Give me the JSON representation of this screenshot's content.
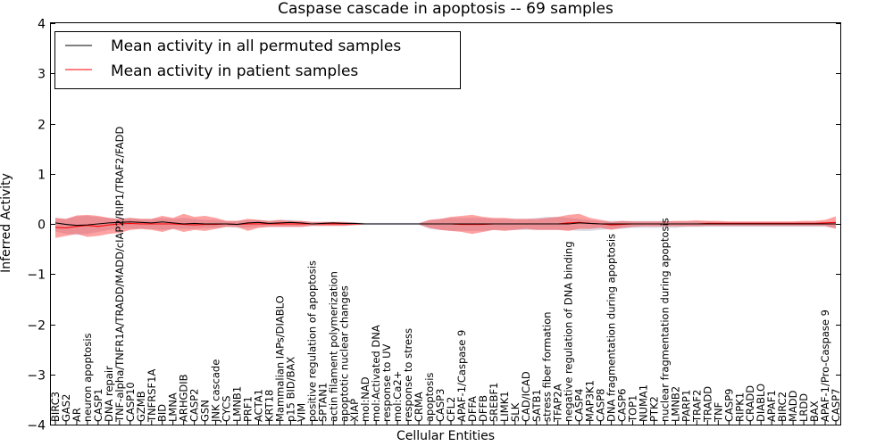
{
  "chart_data": {
    "type": "line",
    "title": "Caspase cascade in apoptosis -- 69 samples",
    "xlabel": "Cellular Entities",
    "ylabel": "Inferred Activity",
    "ylim": [
      -4,
      4
    ],
    "yticks": [
      -4,
      -3,
      -2,
      -1,
      0,
      1,
      2,
      3,
      4
    ],
    "ytick_labels": [
      "−4",
      "−3",
      "−2",
      "−1",
      "0",
      "1",
      "2",
      "3",
      "4"
    ],
    "legend_placement": "top-left",
    "categories": [
      "BIRC3",
      "GAS2",
      "AR",
      "neuron apoptosis",
      "CASP1",
      "DNA repair",
      "TNF-alpha/TNFR1A/TRADD/MADD/cIAP2/RIP1/TRAF2/FADD",
      "CASP10",
      "GZMB",
      "TNFRSF1A",
      "BID",
      "LMNA",
      "ARHGDIB",
      "CASP2",
      "GSN",
      "JNK cascade",
      "CYCS",
      "LMNB1",
      "PRF1",
      "ACTA1",
      "KRT18",
      "Mammalian IAPs/DIABLO",
      "p15 BID/BAX",
      "VIM",
      "positive regulation of apoptosis",
      "SPTAN1",
      "actin filament polymerization",
      "apoptotic nuclear changes",
      "XIAP",
      "mol:NAD",
      "mol:Activated DNA",
      "response to UV",
      "mol:Ca2+",
      "response to stress",
      "CRMA",
      "apoptosis",
      "CASP3",
      "CFL2",
      "APAF-1/Caspase 9",
      "DFFA",
      "DFFB",
      "SREBF1",
      "LIMK1",
      "SLK",
      "CAD/ICAD",
      "SATB1",
      "stress fiber formation",
      "TFAP2A",
      "negative regulation of DNA binding",
      "CASP4",
      "MAP3K1",
      "CASP8",
      "DNA fragmentation during apoptosis",
      "CASP6",
      "TOP1",
      "NUMA1",
      "PTK2",
      "nuclear fragmentation during apoptosis",
      "LMNB2",
      "PARP1",
      "TRAF2",
      "TRADD",
      "TNF",
      "CASP9",
      "RIPK1",
      "CRADD",
      "DIABLO",
      "APAF1",
      "BIRC2",
      "MADD",
      "LRDD",
      "BAX",
      "APAF-1/Pro-Caspase 9",
      "CASP7"
    ],
    "series": [
      {
        "name": "Mean activity in all permuted samples",
        "color": "#000000",
        "values": [
          0.02,
          -0.01,
          -0.03,
          -0.02,
          0.0,
          0.02,
          0.03,
          0.04,
          0.03,
          0.02,
          0.04,
          0.02,
          0.0,
          0.01,
          0.0,
          0.0,
          0.0,
          -0.01,
          0.02,
          0.03,
          0.01,
          0.02,
          0.03,
          0.02,
          0.0,
          0.01,
          0.02,
          0.01,
          0.01,
          0.0,
          0.0,
          0.0,
          0.0,
          0.0,
          0.0,
          0.0,
          0.0,
          0.0,
          0.0,
          0.0,
          0.0,
          0.0,
          0.0,
          0.0,
          0.0,
          0.0,
          0.0,
          0.0,
          0.0,
          0.02,
          0.01,
          0.0,
          0.0,
          0.0,
          0.0,
          0.0,
          0.0,
          0.0,
          0.0,
          0.0,
          0.0,
          0.0,
          0.0,
          0.0,
          0.0,
          0.0,
          0.0,
          0.0,
          0.0,
          0.0,
          0.0,
          0.0,
          0.0,
          0.0
        ],
        "band_upper": [
          0.12,
          0.1,
          0.15,
          0.16,
          0.14,
          0.12,
          0.1,
          0.12,
          0.1,
          0.1,
          0.12,
          0.1,
          0.12,
          0.1,
          0.08,
          0.08,
          0.06,
          0.06,
          0.08,
          0.08,
          0.06,
          0.08,
          0.08,
          0.06,
          0.04,
          0.04,
          0.04,
          0.04,
          0.03,
          0.02,
          0.02,
          0.02,
          0.02,
          0.02,
          0.02,
          0.08,
          0.1,
          0.12,
          0.12,
          0.12,
          0.12,
          0.1,
          0.1,
          0.1,
          0.1,
          0.12,
          0.14,
          0.14,
          0.12,
          0.1,
          0.08,
          0.06,
          0.06,
          0.06,
          0.06,
          0.06,
          0.06,
          0.06,
          0.05,
          0.05,
          0.05,
          0.05,
          0.04,
          0.04,
          0.04,
          0.04,
          0.04,
          0.04,
          0.04,
          0.04,
          0.04,
          0.04,
          0.04,
          0.04
        ],
        "band_lower": [
          -0.15,
          -0.2,
          -0.22,
          -0.2,
          -0.16,
          -0.12,
          -0.1,
          -0.1,
          -0.1,
          -0.1,
          -0.12,
          -0.1,
          -0.1,
          -0.1,
          -0.08,
          -0.08,
          -0.06,
          -0.08,
          -0.08,
          -0.06,
          -0.06,
          -0.06,
          -0.06,
          -0.06,
          -0.04,
          -0.04,
          -0.04,
          -0.04,
          -0.03,
          -0.02,
          -0.02,
          -0.02,
          -0.02,
          -0.02,
          -0.02,
          -0.1,
          -0.12,
          -0.14,
          -0.14,
          -0.14,
          -0.14,
          -0.12,
          -0.12,
          -0.12,
          -0.12,
          -0.12,
          -0.12,
          -0.12,
          -0.12,
          -0.14,
          -0.14,
          -0.12,
          -0.1,
          -0.1,
          -0.08,
          -0.08,
          -0.08,
          -0.08,
          -0.08,
          -0.06,
          -0.06,
          -0.06,
          -0.06,
          -0.06,
          -0.06,
          -0.06,
          -0.06,
          -0.06,
          -0.06,
          -0.06,
          -0.06,
          -0.06,
          -0.06,
          -0.08
        ]
      },
      {
        "name": "Mean activity in patient samples",
        "color": "#ff0000",
        "values": [
          -0.07,
          -0.08,
          -0.05,
          -0.03,
          -0.05,
          -0.02,
          0.0,
          0.01,
          0.0,
          0.0,
          0.0,
          0.0,
          -0.01,
          -0.02,
          -0.01,
          -0.01,
          0.0,
          -0.01,
          0.0,
          0.0,
          0.0,
          0.0,
          0.0,
          0.0,
          0.0,
          0.0,
          0.0,
          0.0,
          0.0,
          0.0,
          0.0,
          0.0,
          0.0,
          0.0,
          0.0,
          0.0,
          0.0,
          0.0,
          -0.01,
          -0.01,
          -0.01,
          0.0,
          0.0,
          0.0,
          0.0,
          0.0,
          0.0,
          0.0,
          0.02,
          0.03,
          0.01,
          0.0,
          -0.02,
          -0.01,
          0.0,
          0.0,
          0.0,
          0.0,
          0.0,
          0.0,
          0.0,
          0.01,
          0.01,
          0.01,
          0.01,
          0.01,
          0.01,
          0.01,
          0.01,
          0.01,
          0.01,
          0.01,
          0.02,
          0.03
        ],
        "band_upper": [
          0.12,
          0.1,
          0.17,
          0.18,
          0.16,
          0.12,
          0.1,
          0.12,
          0.1,
          0.1,
          0.16,
          0.12,
          0.2,
          0.14,
          0.16,
          0.12,
          0.06,
          0.06,
          0.1,
          0.08,
          0.06,
          0.08,
          0.06,
          0.06,
          0.04,
          0.04,
          0.04,
          0.04,
          0.02,
          0.01,
          0.01,
          0.01,
          0.01,
          0.01,
          0.01,
          0.08,
          0.1,
          0.14,
          0.16,
          0.18,
          0.14,
          0.12,
          0.12,
          0.1,
          0.1,
          0.1,
          0.12,
          0.14,
          0.18,
          0.2,
          0.12,
          0.08,
          0.04,
          0.06,
          0.05,
          0.05,
          0.05,
          0.05,
          0.06,
          0.06,
          0.07,
          0.06,
          0.06,
          0.05,
          0.05,
          0.05,
          0.05,
          0.05,
          0.05,
          0.05,
          0.06,
          0.06,
          0.08,
          0.15
        ],
        "band_lower": [
          -0.28,
          -0.24,
          -0.2,
          -0.26,
          -0.24,
          -0.2,
          -0.18,
          -0.12,
          -0.1,
          -0.12,
          -0.16,
          -0.1,
          -0.16,
          -0.12,
          -0.14,
          -0.1,
          -0.06,
          -0.06,
          -0.14,
          -0.08,
          -0.06,
          -0.06,
          -0.06,
          -0.06,
          -0.04,
          -0.04,
          -0.04,
          -0.04,
          -0.02,
          -0.01,
          -0.01,
          -0.01,
          -0.01,
          -0.01,
          -0.01,
          -0.08,
          -0.12,
          -0.14,
          -0.16,
          -0.2,
          -0.16,
          -0.12,
          -0.14,
          -0.12,
          -0.1,
          -0.12,
          -0.12,
          -0.12,
          -0.14,
          -0.1,
          -0.1,
          -0.08,
          -0.12,
          -0.08,
          -0.06,
          -0.05,
          -0.05,
          -0.05,
          -0.05,
          -0.05,
          -0.05,
          -0.04,
          -0.04,
          -0.04,
          -0.04,
          -0.04,
          -0.04,
          -0.04,
          -0.04,
          -0.04,
          -0.04,
          -0.04,
          -0.04,
          -0.1
        ]
      }
    ]
  }
}
